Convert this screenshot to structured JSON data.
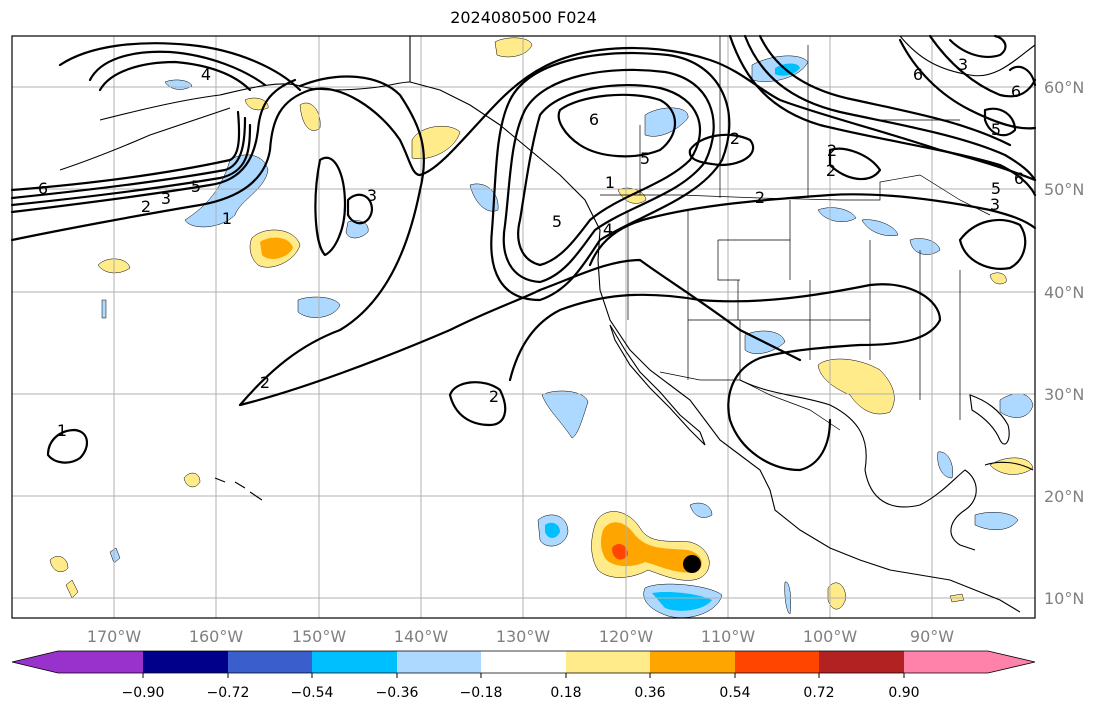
{
  "title": "2024080500 F024",
  "lat_labels": [
    "60°N",
    "50°N",
    "40°N",
    "30°N",
    "20°N",
    "10°N"
  ],
  "lon_labels": [
    "170°W",
    "160°W",
    "150°W",
    "140°W",
    "130°W",
    "120°W",
    "110°W",
    "100°W",
    "90°W"
  ],
  "colorbar": {
    "tick_labels": [
      "−0.90",
      "−0.72",
      "−0.54",
      "−0.36",
      "−0.18",
      "0.18",
      "0.36",
      "0.54",
      "0.72",
      "0.90"
    ],
    "colors": [
      "#9932cc",
      "#00008b",
      "#3a5fcd",
      "#00bfff",
      "#add8ff",
      "#ffffff",
      "#ffeb8a",
      "#ffa500",
      "#ff4500",
      "#b22222",
      "#ff82ab"
    ]
  },
  "contour_labels": [
    "6",
    "4",
    "5",
    "3",
    "2",
    "1",
    "3",
    "6",
    "5",
    "2",
    "2",
    "4",
    "5",
    "2",
    "2",
    "2",
    "1",
    "1",
    "2",
    "6",
    "3",
    "6",
    "5",
    "6",
    "3",
    "5"
  ],
  "marker": {
    "label": "storm-center",
    "color": "#000000"
  }
}
